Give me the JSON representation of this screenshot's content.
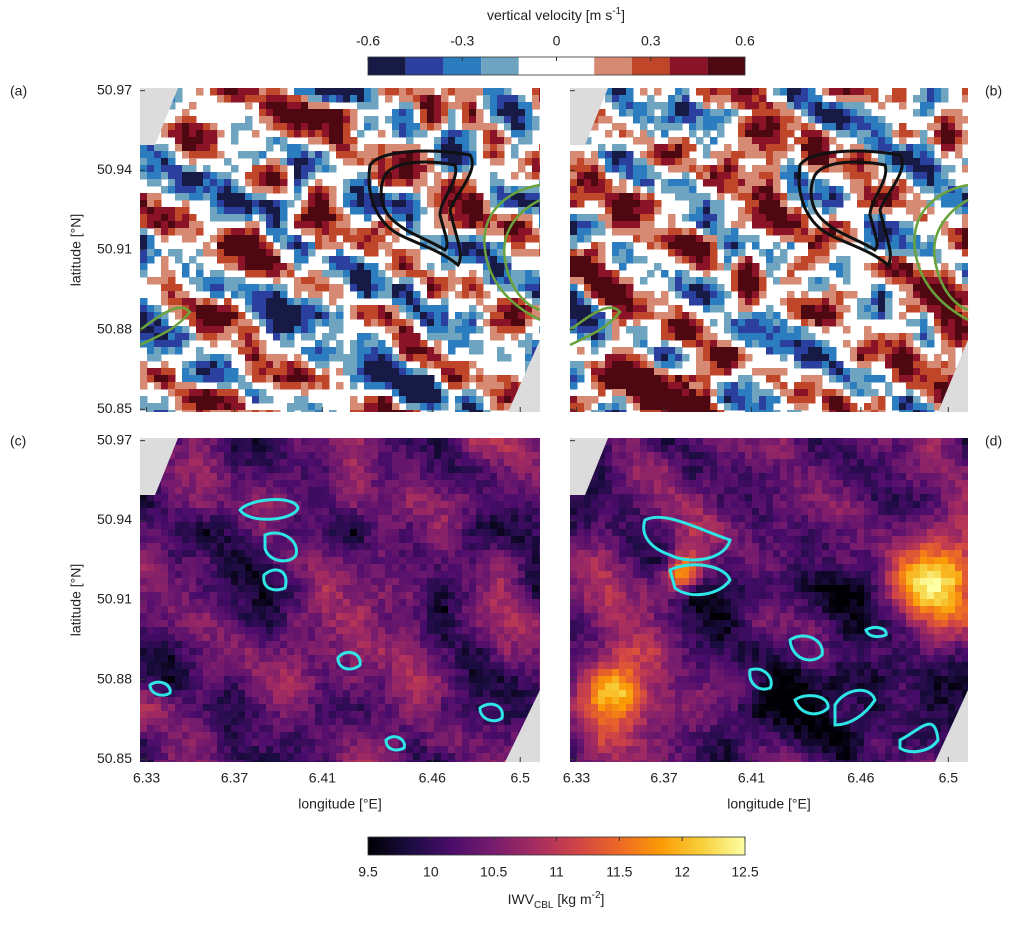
{
  "chart_data": [
    {
      "type": "heatmap",
      "label": "(a)",
      "ylabel": "latitude [°N]",
      "xlim": [
        6.327,
        6.509
      ],
      "ylim": [
        50.849,
        50.971
      ],
      "xticks": [
        6.33,
        6.37,
        6.41,
        6.46,
        6.5
      ],
      "yticks": [
        50.85,
        50.88,
        50.91,
        50.94,
        50.97
      ],
      "x_tick_labels": false,
      "y_tick_labels": true,
      "colorbar": {
        "label": {
          "main": "vertical velocity [m s",
          "sup": "-1",
          "end": "]"
        },
        "ticks": [
          -0.6,
          -0.3,
          0,
          0.3,
          0.6
        ],
        "levels": [
          -0.6,
          -0.48,
          -0.36,
          -0.24,
          -0.12,
          0.12,
          0.24,
          0.36,
          0.48,
          0.6
        ],
        "colors": [
          "#161a45",
          "#2a3f9e",
          "#2c7cc0",
          "#6fa4c1",
          "#ffffff",
          "#d68a73",
          "#bf4628",
          "#8a1328",
          "#4e0812"
        ]
      }
    },
    {
      "type": "heatmap",
      "label": "(b)",
      "xlim": [
        6.327,
        6.509
      ],
      "ylim": [
        50.849,
        50.971
      ],
      "xticks": [
        6.33,
        6.37,
        6.41,
        6.46,
        6.5
      ],
      "yticks": [
        50.85,
        50.88,
        50.91,
        50.94,
        50.97
      ],
      "x_tick_labels": false,
      "y_tick_labels": false
    },
    {
      "type": "heatmap",
      "label": "(c)",
      "xlabel": "longitude [°E]",
      "ylabel": "latitude [°N]",
      "xlim": [
        6.327,
        6.509
      ],
      "ylim": [
        50.849,
        50.971
      ],
      "xticks": [
        6.33,
        6.37,
        6.41,
        6.46,
        6.5
      ],
      "yticks": [
        50.85,
        50.88,
        50.91,
        50.94,
        50.97
      ],
      "x_tick_labels": true,
      "y_tick_labels": true,
      "colorbar": {
        "label": {
          "main": "IWV",
          "sub": "CBL",
          "mid": " [kg m",
          "sup": "-2",
          "end": "]"
        },
        "ticks": [
          9.5,
          10,
          10.5,
          11,
          11.5,
          12,
          12.5
        ],
        "colors": [
          "#000004",
          "#1b0c41",
          "#4a0c6b",
          "#781c6d",
          "#a52c60",
          "#cf4446",
          "#ed6925",
          "#fb9b06",
          "#f7d13d",
          "#fcffa4"
        ]
      }
    },
    {
      "type": "heatmap",
      "label": "(d)",
      "xlabel": "longitude [°E]",
      "xlim": [
        6.327,
        6.509
      ],
      "ylim": [
        50.849,
        50.971
      ],
      "xticks": [
        6.33,
        6.37,
        6.41,
        6.46,
        6.5
      ],
      "yticks": [
        50.85,
        50.88,
        50.91,
        50.94,
        50.97
      ],
      "x_tick_labels": true,
      "y_tick_labels": false
    }
  ]
}
